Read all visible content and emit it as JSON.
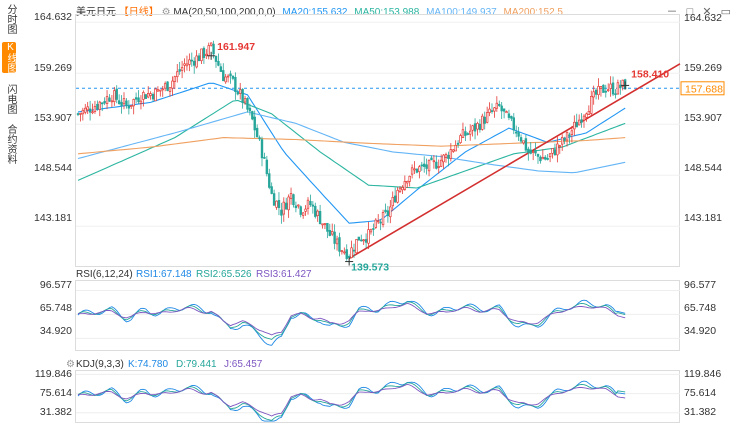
{
  "tabs": [
    "分时图",
    "K线图",
    "闪电图",
    "合约资料"
  ],
  "active_tab": 1,
  "main_header": {
    "symbol": "美元日元",
    "period": "日线",
    "settings_icon": "gear-icon",
    "ma_label": "MA(20,50,100,200,0,0)",
    "ma20": "MA20:155.632",
    "ma50": "MA50:153.988",
    "ma100": "MA100:149.937",
    "ma200": "MA200:152.5"
  },
  "window_icons": [
    "minus-icon",
    "maximize-icon",
    "close-icon",
    "restore-icon"
  ],
  "price_ticks": [
    "164.632",
    "159.269",
    "153.907",
    "148.544",
    "143.181"
  ],
  "current_price": "157.688",
  "annotations": {
    "high_label": "161.947",
    "low_label": "139.573",
    "last_label": "158.410"
  },
  "rsi_header": {
    "label": "RSI(6,12,24)",
    "rsi1": "RSI1:67.148",
    "rsi2": "RSI2:65.526",
    "rsi3": "RSI3:61.427"
  },
  "rsi_ticks": [
    "96.577",
    "65.748",
    "34.920"
  ],
  "kdj_header": {
    "label": "KDJ(9,3,3)",
    "k": "K:74.780",
    "d": "D:79.441",
    "j": "J:65.457"
  },
  "kdj_ticks": [
    "119.846",
    "75.614",
    "31.382"
  ],
  "colors": {
    "up": "#e53935",
    "down": "#26a69a",
    "ma20": "#2196f3",
    "ma50": "#2bb5a0",
    "ma100": "#64b5f6",
    "ma200": "#f0a060",
    "rsi1": "#1e88e5",
    "rsi2": "#26a69a",
    "rsi3": "#7e57c2",
    "k": "#1e88e5",
    "d": "#26a69a",
    "j": "#7e57c2",
    "trend": "#d32f2f",
    "price_tag": "#ff8a00"
  },
  "chart_data": {
    "type": "candlestick",
    "price_axis": {
      "range": [
        139.0,
        165.5
      ],
      "ticks": [
        164.632,
        159.269,
        153.907,
        148.544,
        143.181
      ]
    },
    "current_price": 157.688,
    "high": 161.947,
    "low": 139.573,
    "last": 158.41,
    "price_anchors": [
      [
        0,
        155.0
      ],
      [
        8,
        156.0
      ],
      [
        14,
        157.0
      ],
      [
        20,
        155.8
      ],
      [
        26,
        157.0
      ],
      [
        32,
        157.2
      ],
      [
        38,
        158.2
      ],
      [
        44,
        160.2
      ],
      [
        50,
        161.0
      ],
      [
        55,
        161.9
      ],
      [
        60,
        159.0
      ],
      [
        64,
        158.3
      ],
      [
        68,
        156.5
      ],
      [
        72,
        154.3
      ],
      [
        76,
        151.0
      ],
      [
        80,
        146.5
      ],
      [
        84,
        144.8
      ],
      [
        88,
        146.5
      ],
      [
        92,
        145.0
      ],
      [
        96,
        145.5
      ],
      [
        100,
        144.0
      ],
      [
        104,
        142.3
      ],
      [
        108,
        141.0
      ],
      [
        112,
        140.3
      ],
      [
        116,
        142.0
      ],
      [
        120,
        142.2
      ],
      [
        124,
        143.5
      ],
      [
        128,
        144.5
      ],
      [
        132,
        147.0
      ],
      [
        136,
        148.5
      ],
      [
        140,
        149.2
      ],
      [
        146,
        149.5
      ],
      [
        152,
        150.5
      ],
      [
        158,
        152.5
      ],
      [
        164,
        153.5
      ],
      [
        170,
        155.0
      ],
      [
        174,
        155.7
      ],
      [
        178,
        154.2
      ],
      [
        182,
        153.0
      ],
      [
        186,
        151.0
      ],
      [
        190,
        150.5
      ],
      [
        194,
        150.3
      ],
      [
        198,
        151.5
      ],
      [
        202,
        152.5
      ],
      [
        206,
        154.0
      ],
      [
        210,
        155.6
      ],
      [
        214,
        157.0
      ],
      [
        218,
        157.8
      ],
      [
        222,
        157.6
      ],
      [
        226,
        158.1
      ]
    ],
    "ma_series": [
      {
        "name": "MA20",
        "value": 155.632,
        "points": [
          [
            0,
            155.2
          ],
          [
            30,
            156.2
          ],
          [
            55,
            158.3
          ],
          [
            70,
            157.0
          ],
          [
            85,
            151.0
          ],
          [
            100,
            146.8
          ],
          [
            112,
            143.5
          ],
          [
            125,
            143.8
          ],
          [
            140,
            147.0
          ],
          [
            160,
            151.0
          ],
          [
            178,
            153.5
          ],
          [
            194,
            152.0
          ],
          [
            210,
            153.0
          ],
          [
            226,
            155.6
          ]
        ]
      },
      {
        "name": "MA50",
        "value": 153.988,
        "points": [
          [
            0,
            148.0
          ],
          [
            40,
            152.5
          ],
          [
            65,
            156.5
          ],
          [
            80,
            155.0
          ],
          [
            100,
            151.0
          ],
          [
            120,
            147.5
          ],
          [
            140,
            147.2
          ],
          [
            160,
            149.0
          ],
          [
            180,
            150.8
          ],
          [
            200,
            151.5
          ],
          [
            226,
            154.0
          ]
        ]
      },
      {
        "name": "MA100",
        "value": 149.937,
        "points": [
          [
            0,
            150.3
          ],
          [
            40,
            153.0
          ],
          [
            70,
            155.2
          ],
          [
            90,
            154.0
          ],
          [
            110,
            152.0
          ],
          [
            130,
            151.0
          ],
          [
            150,
            150.5
          ],
          [
            170,
            149.7
          ],
          [
            190,
            149.0
          ],
          [
            205,
            148.8
          ],
          [
            226,
            149.9
          ]
        ]
      },
      {
        "name": "MA200",
        "value": 152.5,
        "points": [
          [
            0,
            150.8
          ],
          [
            30,
            151.5
          ],
          [
            60,
            152.5
          ],
          [
            90,
            152.3
          ],
          [
            120,
            151.9
          ],
          [
            150,
            151.6
          ],
          [
            170,
            151.8
          ],
          [
            190,
            152.0
          ],
          [
            210,
            152.2
          ],
          [
            226,
            152.5
          ]
        ]
      }
    ],
    "trendline": [
      [
        112,
        139.8
      ],
      [
        228,
        159.0
      ]
    ],
    "rsi": {
      "range": [
        20,
        110
      ],
      "ticks": [
        96.577,
        65.748,
        34.92
      ],
      "series": [
        {
          "name": "RSI1",
          "value": 67.148
        },
        {
          "name": "RSI2",
          "value": 65.526
        },
        {
          "name": "RSI3",
          "value": 61.427
        }
      ]
    },
    "kdj": {
      "range": [
        10,
        130
      ],
      "ticks": [
        119.846,
        75.614,
        31.382
      ],
      "series": [
        {
          "name": "K",
          "value": 74.78
        },
        {
          "name": "D",
          "value": 79.441
        },
        {
          "name": "J",
          "value": 65.457
        }
      ]
    }
  }
}
